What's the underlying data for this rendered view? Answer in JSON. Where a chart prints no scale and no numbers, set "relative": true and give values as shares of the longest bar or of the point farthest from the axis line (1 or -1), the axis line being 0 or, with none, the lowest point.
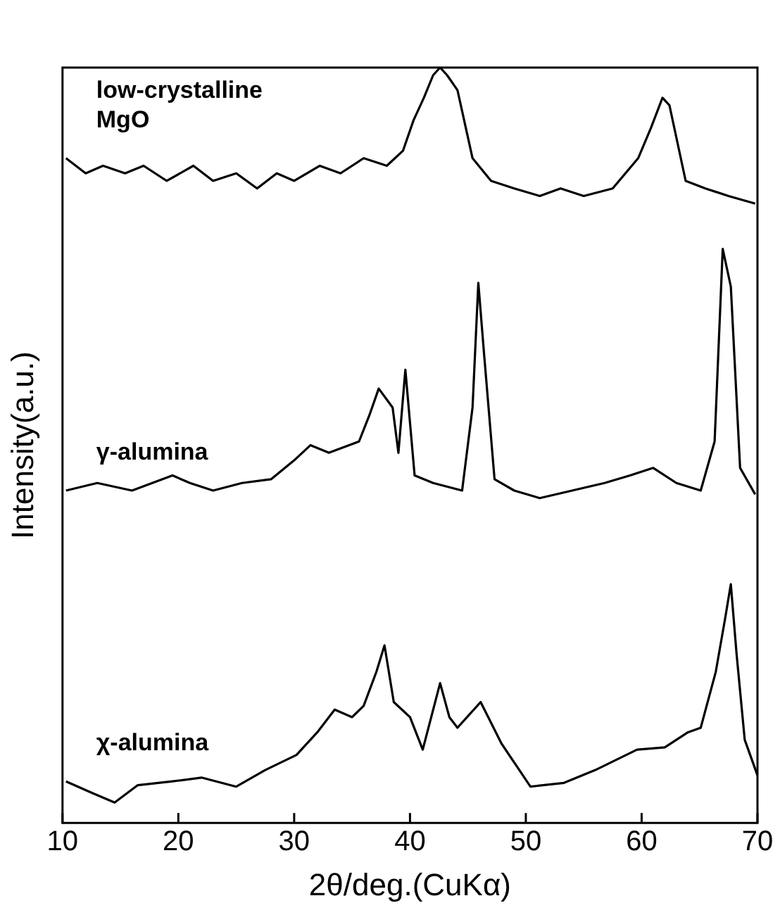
{
  "chart_data": {
    "type": "line",
    "relative": true,
    "xlabel": "2θ/deg.(CuKα)",
    "ylabel": "Intensity(a.u.)",
    "xlim": [
      10,
      70
    ],
    "xticks": [
      10,
      20,
      30,
      40,
      50,
      60,
      70
    ],
    "tick_labels": "x",
    "grid": false,
    "legend": false,
    "marker": "none",
    "line_style": "solid",
    "series": [
      {
        "name": "low-crystalline MgO",
        "color": "#000000",
        "x": [
          10.3,
          12,
          13.5,
          15.4,
          17,
          19,
          21.3,
          23,
          25,
          26.8,
          28.5,
          30,
          32.2,
          34,
          36,
          38,
          39.4,
          40.3,
          41.2,
          42,
          42.6,
          43.2,
          44.1,
          45.4,
          47,
          49,
          51.2,
          53,
          55,
          57.5,
          59.7,
          60.8,
          61.8,
          62.4,
          63.8,
          65.5,
          67.5,
          69.8
        ],
        "values": [
          0.88,
          0.86,
          0.87,
          0.86,
          0.87,
          0.85,
          0.87,
          0.85,
          0.86,
          0.84,
          0.86,
          0.85,
          0.87,
          0.86,
          0.88,
          0.87,
          0.89,
          0.93,
          0.96,
          0.99,
          1.0,
          0.99,
          0.97,
          0.88,
          0.85,
          0.84,
          0.83,
          0.84,
          0.83,
          0.84,
          0.88,
          0.92,
          0.96,
          0.95,
          0.85,
          0.84,
          0.83,
          0.82
        ]
      },
      {
        "name": "γ-alumina",
        "color": "#000000",
        "x": [
          10.3,
          13,
          16,
          19.5,
          21,
          23,
          25.5,
          28,
          30,
          31.4,
          33,
          35.6,
          36.5,
          37.3,
          38.5,
          39,
          39.6,
          40.4,
          42,
          44.5,
          45.4,
          45.9,
          46.4,
          47.3,
          49,
          51.2,
          54,
          56.8,
          59,
          61,
          63,
          65.1,
          66.3,
          67,
          67.7,
          68.5,
          69.8
        ],
        "values": [
          0.44,
          0.45,
          0.44,
          0.46,
          0.45,
          0.44,
          0.45,
          0.455,
          0.48,
          0.5,
          0.49,
          0.505,
          0.54,
          0.575,
          0.55,
          0.49,
          0.6,
          0.46,
          0.45,
          0.44,
          0.55,
          0.715,
          0.62,
          0.455,
          0.44,
          0.43,
          0.44,
          0.45,
          0.46,
          0.47,
          0.45,
          0.44,
          0.505,
          0.76,
          0.71,
          0.47,
          0.435
        ]
      },
      {
        "name": "χ-alumina",
        "color": "#000000",
        "x": [
          10.3,
          12.5,
          14.5,
          16.5,
          19.5,
          22,
          25,
          27.5,
          30.2,
          32,
          33.5,
          35,
          36,
          37.1,
          37.8,
          38.6,
          40,
          41.1,
          42.6,
          43.4,
          44.1,
          46.1,
          47.9,
          49,
          50.4,
          53.3,
          56,
          59.6,
          62,
          64,
          65.1,
          66.4,
          67.2,
          67.7,
          68.2,
          68.9,
          70
        ],
        "values": [
          0.055,
          0.04,
          0.027,
          0.05,
          0.055,
          0.06,
          0.048,
          0.07,
          0.09,
          0.12,
          0.15,
          0.14,
          0.155,
          0.2,
          0.235,
          0.16,
          0.14,
          0.097,
          0.185,
          0.14,
          0.126,
          0.16,
          0.105,
          0.08,
          0.048,
          0.053,
          0.07,
          0.097,
          0.1,
          0.12,
          0.126,
          0.2,
          0.27,
          0.316,
          0.223,
          0.11,
          0.063
        ]
      }
    ]
  }
}
